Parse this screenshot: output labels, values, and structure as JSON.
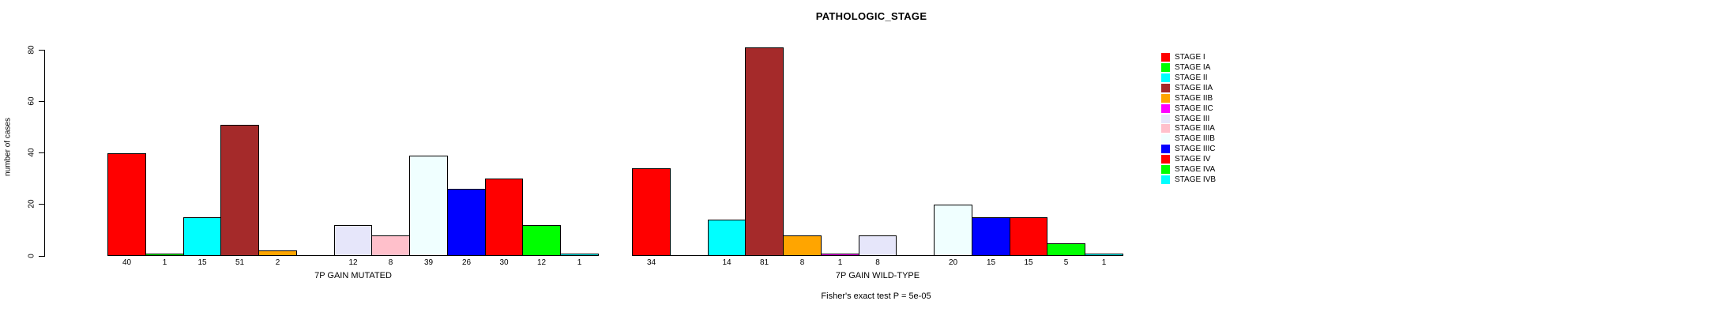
{
  "chart_data": {
    "type": "bar",
    "title": "PATHOLOGIC_STAGE",
    "ylabel": "number of cases",
    "ylim": [
      0,
      80
    ],
    "yticks": [
      0,
      20,
      40,
      60,
      80
    ],
    "grid": false,
    "legend_position": "right",
    "categories": [
      "STAGE I",
      "STAGE IA",
      "STAGE II",
      "STAGE IIA",
      "STAGE IIB",
      "STAGE IIC",
      "STAGE III",
      "STAGE IIIA",
      "STAGE IIIB",
      "STAGE IIIC",
      "STAGE IV",
      "STAGE IVA",
      "STAGE IVB"
    ],
    "colors": [
      "#ff0000",
      "#00ff00",
      "#00ffff",
      "#a52a2a",
      "#ffa500",
      "#ff00ff",
      "#e6e6fa",
      "#ffc0cb",
      "#f0ffff",
      "#0000ff",
      "#ff0000",
      "#00ff00",
      "#00ffff"
    ],
    "series": [
      {
        "name": "7P GAIN MUTATED",
        "values": [
          40,
          1,
          15,
          51,
          2,
          0,
          12,
          8,
          39,
          26,
          30,
          12,
          1
        ]
      },
      {
        "name": "7P GAIN WILD-TYPE",
        "values": [
          34,
          0,
          14,
          81,
          8,
          1,
          8,
          0,
          20,
          15,
          15,
          5,
          1
        ]
      }
    ],
    "bar_value_labels": "shown below non-zero bars",
    "footnote": "Fisher's exact test P = 5e-05"
  }
}
